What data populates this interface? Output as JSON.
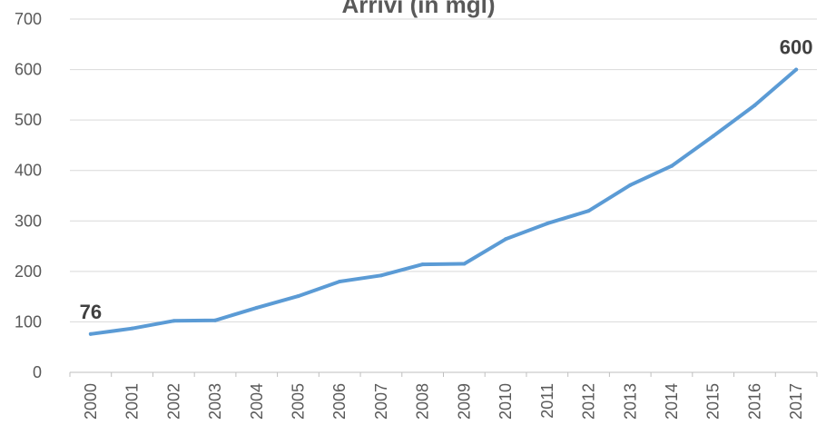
{
  "chart_data": {
    "type": "line",
    "title": "Arrivi (in mgl)",
    "xlabel": "",
    "ylabel": "",
    "categories": [
      "2000",
      "2001",
      "2002",
      "2003",
      "2004",
      "2005",
      "2006",
      "2007",
      "2008",
      "2009",
      "2010",
      "2011",
      "2012",
      "2013",
      "2014",
      "2015",
      "2016",
      "2017"
    ],
    "series": [
      {
        "values": [
          76,
          87,
          102,
          103,
          128,
          151,
          180,
          192,
          214,
          215,
          264,
          295,
          320,
          371,
          409,
          468,
          529,
          600
        ],
        "color": "#5b9bd5"
      }
    ],
    "data_labels": [
      {
        "category": "2000",
        "text": "76"
      },
      {
        "category": "2017",
        "text": "600"
      }
    ],
    "ylim": [
      0,
      700
    ],
    "yticks": [
      0,
      100,
      200,
      300,
      400,
      500,
      600,
      700
    ],
    "grid": true,
    "legend": "none"
  }
}
